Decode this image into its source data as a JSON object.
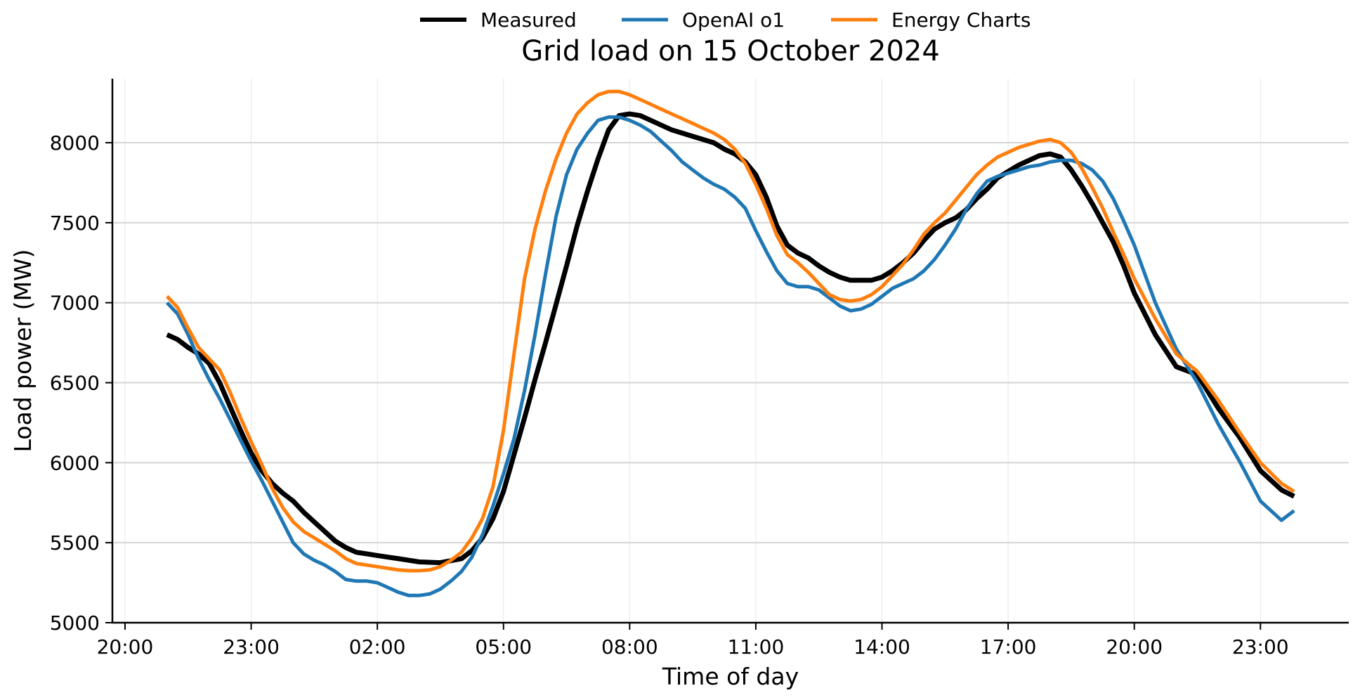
{
  "chart_data": {
    "type": "line",
    "title": "Grid load on 15 October 2024",
    "xlabel": "Time of day",
    "ylabel": "Load power (MW)",
    "legend_position": "top-center",
    "grid": true,
    "x_ticks": [
      "20:00",
      "23:00",
      "02:00",
      "05:00",
      "08:00",
      "11:00",
      "14:00",
      "17:00",
      "20:00",
      "23:00"
    ],
    "x_tick_hours": [
      0,
      3,
      6,
      9,
      12,
      15,
      18,
      21,
      24,
      27
    ],
    "x_range_hours": [
      -0.3,
      29.1
    ],
    "ylim": [
      5000,
      8400
    ],
    "y_ticks": [
      5000,
      5500,
      6000,
      6500,
      7000,
      7500,
      8000
    ],
    "series": [
      {
        "name": "Measured",
        "color": "#000000",
        "x_hours": [
          1.0,
          1.25,
          1.5,
          1.75,
          2.0,
          2.25,
          2.5,
          2.75,
          3.0,
          3.25,
          3.5,
          3.75,
          4.0,
          4.25,
          4.5,
          4.75,
          5.0,
          5.25,
          5.5,
          5.75,
          6.0,
          6.25,
          6.5,
          6.75,
          7.0,
          7.5,
          8.0,
          8.25,
          8.5,
          8.75,
          9.0,
          9.25,
          9.5,
          9.75,
          10.0,
          10.25,
          10.5,
          10.75,
          11.0,
          11.25,
          11.5,
          11.75,
          12.0,
          12.25,
          12.5,
          12.75,
          13.0,
          13.25,
          13.5,
          13.75,
          14.0,
          14.25,
          14.5,
          14.75,
          15.0,
          15.25,
          15.5,
          15.75,
          16.0,
          16.25,
          16.5,
          16.75,
          17.0,
          17.25,
          17.5,
          17.75,
          18.0,
          18.25,
          18.5,
          18.75,
          19.0,
          19.25,
          19.5,
          19.75,
          20.0,
          20.25,
          20.5,
          20.75,
          21.0,
          21.25,
          21.5,
          21.75,
          22.0,
          22.25,
          22.5,
          22.75,
          23.0,
          23.25,
          23.5,
          23.75,
          24.0,
          24.5,
          25.0,
          25.5,
          26.0,
          26.5,
          27.0,
          27.5,
          27.8
        ],
        "values": [
          6800,
          6770,
          6720,
          6680,
          6620,
          6500,
          6350,
          6200,
          6060,
          5950,
          5870,
          5810,
          5760,
          5690,
          5630,
          5570,
          5510,
          5470,
          5440,
          5430,
          5420,
          5410,
          5400,
          5390,
          5380,
          5375,
          5400,
          5450,
          5530,
          5650,
          5820,
          6050,
          6280,
          6520,
          6750,
          6990,
          7230,
          7480,
          7700,
          7900,
          8080,
          8170,
          8180,
          8170,
          8140,
          8110,
          8080,
          8060,
          8040,
          8020,
          8000,
          7960,
          7930,
          7880,
          7800,
          7660,
          7480,
          7360,
          7310,
          7280,
          7230,
          7190,
          7160,
          7140,
          7140,
          7140,
          7160,
          7200,
          7250,
          7310,
          7390,
          7460,
          7500,
          7530,
          7580,
          7650,
          7710,
          7780,
          7820,
          7860,
          7890,
          7920,
          7930,
          7910,
          7830,
          7730,
          7620,
          7500,
          7380,
          7230,
          7060,
          6800,
          6600,
          6550,
          6340,
          6160,
          5950,
          5830,
          5790
        ]
      },
      {
        "name": "OpenAI o1",
        "color": "#1f77b4",
        "x_hours": [
          1.0,
          1.25,
          1.5,
          1.75,
          2.0,
          2.25,
          2.5,
          2.75,
          3.0,
          3.25,
          3.5,
          3.75,
          4.0,
          4.25,
          4.5,
          4.75,
          5.0,
          5.25,
          5.5,
          5.75,
          6.0,
          6.25,
          6.5,
          6.75,
          7.0,
          7.25,
          7.5,
          7.75,
          8.0,
          8.25,
          8.5,
          8.75,
          9.0,
          9.25,
          9.5,
          9.75,
          10.0,
          10.25,
          10.5,
          10.75,
          11.0,
          11.25,
          11.5,
          11.75,
          12.0,
          12.25,
          12.5,
          12.75,
          13.0,
          13.25,
          13.5,
          13.75,
          14.0,
          14.25,
          14.5,
          14.75,
          15.0,
          15.25,
          15.5,
          15.75,
          16.0,
          16.25,
          16.5,
          16.75,
          17.0,
          17.25,
          17.5,
          17.75,
          18.0,
          18.25,
          18.5,
          18.75,
          19.0,
          19.25,
          19.5,
          19.75,
          20.0,
          20.25,
          20.5,
          20.75,
          21.0,
          21.25,
          21.5,
          21.75,
          22.0,
          22.25,
          22.5,
          22.75,
          23.0,
          23.25,
          23.5,
          23.75,
          24.0,
          24.5,
          25.0,
          25.5,
          26.0,
          26.5,
          27.0,
          27.5,
          27.8
        ],
        "values": [
          7000,
          6930,
          6800,
          6650,
          6520,
          6400,
          6270,
          6140,
          6010,
          5890,
          5760,
          5630,
          5500,
          5430,
          5390,
          5360,
          5320,
          5270,
          5260,
          5260,
          5250,
          5220,
          5190,
          5170,
          5170,
          5180,
          5210,
          5260,
          5320,
          5410,
          5550,
          5730,
          5930,
          6150,
          6450,
          6800,
          7180,
          7540,
          7800,
          7960,
          8060,
          8140,
          8160,
          8160,
          8140,
          8110,
          8070,
          8010,
          7950,
          7880,
          7830,
          7780,
          7740,
          7710,
          7660,
          7590,
          7450,
          7320,
          7200,
          7120,
          7100,
          7100,
          7080,
          7030,
          6980,
          6950,
          6960,
          6990,
          7040,
          7090,
          7120,
          7150,
          7200,
          7270,
          7360,
          7460,
          7580,
          7680,
          7760,
          7790,
          7810,
          7830,
          7850,
          7860,
          7880,
          7890,
          7890,
          7870,
          7830,
          7760,
          7650,
          7510,
          7360,
          7000,
          6710,
          6500,
          6240,
          6010,
          5760,
          5640,
          5700
        ]
      },
      {
        "name": "Energy Charts",
        "color": "#ff7f0e",
        "x_hours": [
          1.0,
          1.25,
          1.5,
          1.75,
          2.0,
          2.25,
          2.5,
          2.75,
          3.0,
          3.25,
          3.5,
          3.75,
          4.0,
          4.25,
          4.5,
          4.75,
          5.0,
          5.25,
          5.5,
          5.75,
          6.0,
          6.25,
          6.5,
          6.75,
          7.0,
          7.25,
          7.5,
          7.75,
          8.0,
          8.25,
          8.5,
          8.75,
          9.0,
          9.25,
          9.5,
          9.75,
          10.0,
          10.25,
          10.5,
          10.75,
          11.0,
          11.25,
          11.5,
          11.75,
          12.0,
          12.25,
          12.5,
          12.75,
          13.0,
          13.25,
          13.5,
          13.75,
          14.0,
          14.25,
          14.5,
          14.75,
          15.0,
          15.25,
          15.5,
          15.75,
          16.0,
          16.25,
          16.5,
          16.75,
          17.0,
          17.25,
          17.5,
          17.75,
          18.0,
          18.25,
          18.5,
          18.75,
          19.0,
          19.25,
          19.5,
          19.75,
          20.0,
          20.25,
          20.5,
          20.75,
          21.0,
          21.25,
          21.5,
          21.75,
          22.0,
          22.25,
          22.5,
          22.75,
          23.0,
          23.25,
          23.5,
          23.75,
          24.0,
          24.5,
          25.0,
          25.5,
          26.0,
          26.5,
          27.0,
          27.5,
          27.8
        ],
        "values": [
          7040,
          6970,
          6840,
          6720,
          6650,
          6580,
          6440,
          6280,
          6130,
          5990,
          5840,
          5720,
          5630,
          5570,
          5530,
          5490,
          5450,
          5400,
          5370,
          5360,
          5350,
          5340,
          5330,
          5325,
          5325,
          5330,
          5350,
          5390,
          5440,
          5530,
          5650,
          5850,
          6200,
          6680,
          7150,
          7460,
          7700,
          7900,
          8060,
          8180,
          8250,
          8300,
          8320,
          8320,
          8300,
          8270,
          8240,
          8210,
          8180,
          8150,
          8120,
          8090,
          8060,
          8020,
          7960,
          7870,
          7740,
          7590,
          7420,
          7300,
          7250,
          7190,
          7120,
          7050,
          7020,
          7010,
          7020,
          7050,
          7100,
          7170,
          7240,
          7330,
          7430,
          7500,
          7560,
          7640,
          7720,
          7800,
          7860,
          7910,
          7940,
          7970,
          7990,
          8010,
          8020,
          8000,
          7940,
          7840,
          7720,
          7590,
          7440,
          7300,
          7150,
          6900,
          6680,
          6570,
          6390,
          6190,
          6000,
          5870,
          5820
        ]
      }
    ]
  }
}
